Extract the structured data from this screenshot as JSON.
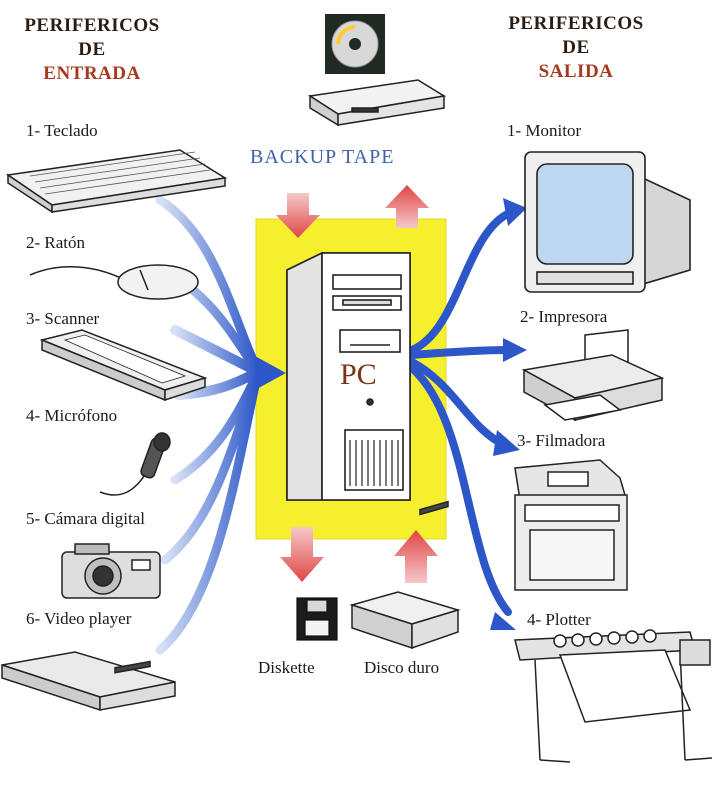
{
  "colors": {
    "panel": "#f6ef2e",
    "arrow_blue": "#2d57c8",
    "arrow_red": "#e05a5a",
    "heading_accent": "#a6391e",
    "backup_text": "#3f63a8",
    "pc_text": "#7a3418"
  },
  "input_heading": {
    "line1": "PERIFERICOS",
    "line2": "DE",
    "line3": "ENTRADA"
  },
  "output_heading": {
    "line1": "PERIFERICOS",
    "line2": "DE",
    "line3": "SALIDA"
  },
  "input_devices": [
    {
      "label": "1- Teclado",
      "icon": "keyboard-icon"
    },
    {
      "label": "2- Ratón",
      "icon": "mouse-icon"
    },
    {
      "label": "3- Scanner",
      "icon": "scanner-icon"
    },
    {
      "label": "4- Micrófono",
      "icon": "microphone-icon"
    },
    {
      "label": "5- Cámara digital",
      "icon": "camera-icon"
    },
    {
      "label": "6- Video player",
      "icon": "video-player-icon"
    }
  ],
  "output_devices": [
    {
      "label": "1- Monitor",
      "icon": "monitor-icon"
    },
    {
      "label": "2- Impresora",
      "icon": "printer-icon"
    },
    {
      "label": "3- Filmadora",
      "icon": "film-recorder-icon"
    },
    {
      "label": "4- Plotter",
      "icon": "plotter-icon"
    }
  ],
  "center": {
    "label": "PC",
    "icon": "computer-tower-icon"
  },
  "backup": {
    "label": "BACKUP TAPE",
    "icon": "tape-drive-icon",
    "cd_icon": "cd-icon"
  },
  "storage": [
    {
      "label": "Diskette",
      "icon": "diskette-icon"
    },
    {
      "label": "Disco duro",
      "icon": "hard-disk-icon"
    }
  ]
}
